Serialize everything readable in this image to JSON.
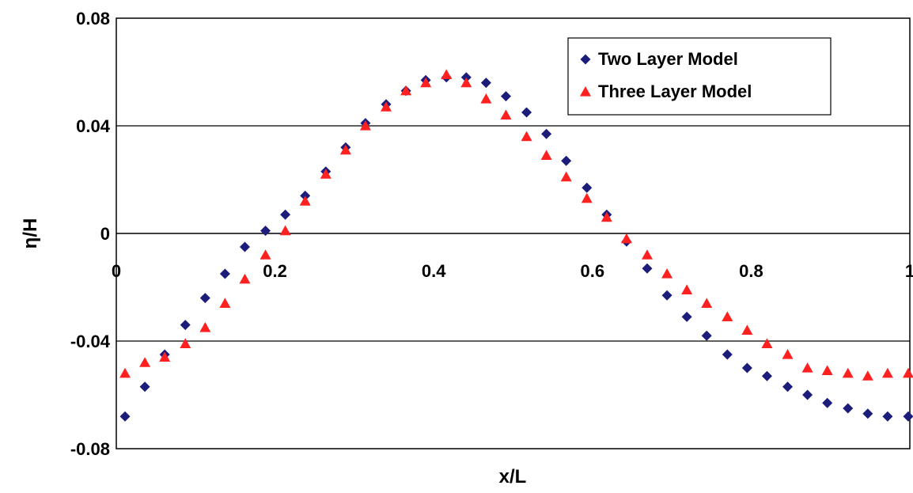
{
  "chart_data": {
    "type": "scatter",
    "xlabel": "x/L",
    "ylabel": "η/H",
    "xlim": [
      0,
      1
    ],
    "ylim": [
      -0.08,
      0.08
    ],
    "x_ticks": [
      "0",
      "0.2",
      "0.4",
      "0.6",
      "0.8",
      "1"
    ],
    "y_ticks": [
      "0.08",
      "0.04",
      "0",
      "-0.04",
      "-0.08"
    ],
    "grid": "horizontal",
    "legend_position": "top-right",
    "series": [
      {
        "name": "Two Layer Model",
        "marker": "diamond",
        "color": "#1c1c7a",
        "x": [
          0.011,
          0.036,
          0.061,
          0.087,
          0.112,
          0.137,
          0.162,
          0.188,
          0.213,
          0.238,
          0.264,
          0.289,
          0.314,
          0.34,
          0.365,
          0.39,
          0.416,
          0.441,
          0.466,
          0.491,
          0.517,
          0.542,
          0.567,
          0.593,
          0.618,
          0.643,
          0.669,
          0.694,
          0.719,
          0.744,
          0.77,
          0.795,
          0.82,
          0.846,
          0.871,
          0.896,
          0.922,
          0.947,
          0.972,
          0.998
        ],
        "y": [
          -0.068,
          -0.057,
          -0.045,
          -0.034,
          -0.024,
          -0.015,
          -0.005,
          0.001,
          0.007,
          0.014,
          0.023,
          0.032,
          0.041,
          0.048,
          0.053,
          0.057,
          0.058,
          0.058,
          0.056,
          0.051,
          0.045,
          0.037,
          0.027,
          0.017,
          0.007,
          -0.003,
          -0.013,
          -0.023,
          -0.031,
          -0.038,
          -0.045,
          -0.05,
          -0.053,
          -0.057,
          -0.06,
          -0.063,
          -0.065,
          -0.067,
          -0.068,
          -0.068
        ]
      },
      {
        "name": "Three Layer Model",
        "marker": "triangle",
        "color": "#ff2020",
        "x": [
          0.011,
          0.036,
          0.061,
          0.087,
          0.112,
          0.137,
          0.162,
          0.188,
          0.213,
          0.238,
          0.264,
          0.289,
          0.314,
          0.34,
          0.365,
          0.39,
          0.416,
          0.441,
          0.466,
          0.491,
          0.517,
          0.542,
          0.567,
          0.593,
          0.618,
          0.643,
          0.669,
          0.694,
          0.719,
          0.744,
          0.77,
          0.795,
          0.82,
          0.846,
          0.871,
          0.896,
          0.922,
          0.947,
          0.972,
          0.998
        ],
        "y": [
          -0.052,
          -0.048,
          -0.046,
          -0.041,
          -0.035,
          -0.026,
          -0.017,
          -0.008,
          0.001,
          0.012,
          0.022,
          0.031,
          0.04,
          0.047,
          0.053,
          0.056,
          0.059,
          0.056,
          0.05,
          0.044,
          0.036,
          0.029,
          0.021,
          0.013,
          0.006,
          -0.002,
          -0.008,
          -0.015,
          -0.021,
          -0.026,
          -0.031,
          -0.036,
          -0.041,
          -0.045,
          -0.05,
          -0.051,
          -0.052,
          -0.053,
          -0.052,
          -0.052
        ]
      }
    ]
  }
}
